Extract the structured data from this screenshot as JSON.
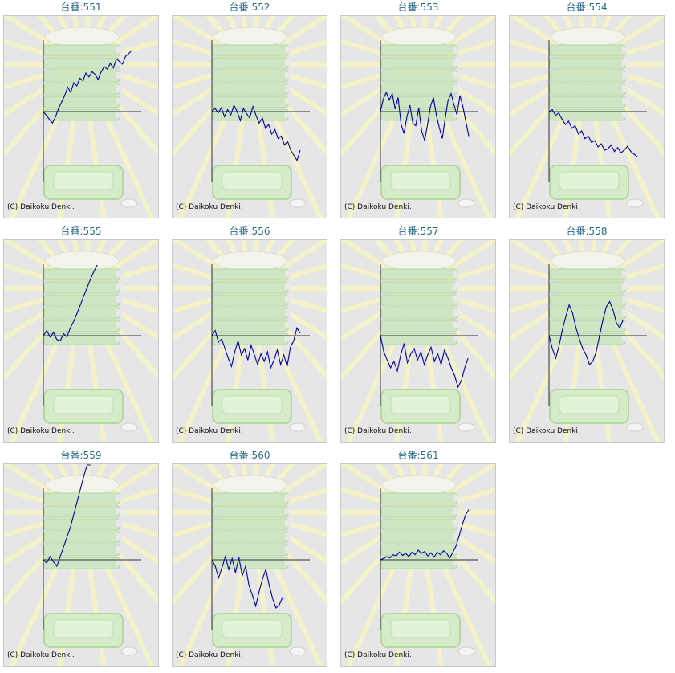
{
  "title_prefix": "台番:",
  "copyright": "(C) Daikoku Denki.",
  "line_color": "#0000aa",
  "chart_data": [
    {
      "type": "line",
      "title": "台番:551",
      "values": [
        0,
        -6,
        -12,
        -18,
        -8,
        5,
        15,
        25,
        38,
        30,
        45,
        40,
        52,
        48,
        60,
        54,
        62,
        58,
        50,
        62,
        70,
        66,
        75,
        68,
        82,
        78,
        74,
        86,
        90,
        95
      ]
    },
    {
      "type": "line",
      "title": "台番:552",
      "values": [
        0,
        5,
        -2,
        6,
        -8,
        3,
        -5,
        10,
        0,
        -14,
        5,
        -3,
        -10,
        8,
        -6,
        -18,
        -10,
        -26,
        -20,
        -35,
        -28,
        -42,
        -38,
        -52,
        -46,
        -60,
        -68,
        -76,
        -60
      ]
    },
    {
      "type": "line",
      "title": "台番:553",
      "values": [
        0,
        20,
        30,
        18,
        28,
        4,
        22,
        -20,
        -34,
        -8,
        10,
        -18,
        -22,
        6,
        -30,
        -45,
        -20,
        8,
        22,
        -6,
        -25,
        -42,
        -10,
        18,
        28,
        10,
        -5,
        25,
        8,
        -15,
        -38
      ]
    },
    {
      "type": "line",
      "title": "台番:554",
      "values": [
        0,
        3,
        -6,
        -2,
        -12,
        -20,
        -15,
        -26,
        -22,
        -35,
        -30,
        -42,
        -38,
        -48,
        -45,
        -55,
        -50,
        -60,
        -58,
        -52,
        -62,
        -56,
        -64,
        -60,
        -54,
        -62,
        -66,
        -70
      ]
    },
    {
      "type": "line",
      "title": "台番:555",
      "values": [
        0,
        8,
        -2,
        5,
        -6,
        -8,
        3,
        -2,
        12,
        22,
        35,
        48,
        62,
        75,
        88,
        100,
        110
      ]
    },
    {
      "type": "line",
      "title": "台番:556",
      "values": [
        0,
        8,
        -10,
        -5,
        -20,
        -35,
        -48,
        -25,
        -8,
        -30,
        -20,
        -38,
        -15,
        -30,
        -45,
        -28,
        -40,
        -25,
        -50,
        -38,
        -22,
        -45,
        -30,
        -48,
        -18,
        -8,
        12,
        4
      ]
    },
    {
      "type": "line",
      "title": "台番:557",
      "values": [
        0,
        -25,
        -38,
        -50,
        -40,
        -55,
        -30,
        -12,
        -42,
        -28,
        -20,
        -38,
        -25,
        -45,
        -30,
        -18,
        -40,
        -28,
        -45,
        -22,
        -35,
        -50,
        -62,
        -80,
        -70,
        -50,
        -35
      ]
    },
    {
      "type": "line",
      "title": "台番:558",
      "values": [
        0,
        -20,
        -35,
        -15,
        10,
        30,
        48,
        35,
        12,
        -5,
        -20,
        -30,
        -45,
        -40,
        -25,
        0,
        25,
        45,
        53,
        40,
        20,
        12,
        25
      ]
    },
    {
      "type": "line",
      "title": "台番:559",
      "values": [
        0,
        -5,
        5,
        -3,
        -10,
        5,
        20,
        35,
        50,
        70,
        90,
        110,
        130,
        150,
        170
      ]
    },
    {
      "type": "line",
      "title": "台番:560",
      "values": [
        0,
        -10,
        -28,
        -12,
        5,
        -15,
        2,
        -20,
        4,
        -25,
        -10,
        -40,
        -55,
        -72,
        -50,
        -30,
        -15,
        -40,
        -60,
        -75,
        -70,
        -58
      ]
    },
    {
      "type": "line",
      "title": "台番:561",
      "values": [
        0,
        2,
        5,
        3,
        8,
        6,
        12,
        7,
        10,
        5,
        12,
        8,
        15,
        10,
        13,
        6,
        11,
        4,
        12,
        8,
        14,
        10,
        3,
        12,
        22,
        38,
        55,
        70,
        78
      ]
    }
  ]
}
